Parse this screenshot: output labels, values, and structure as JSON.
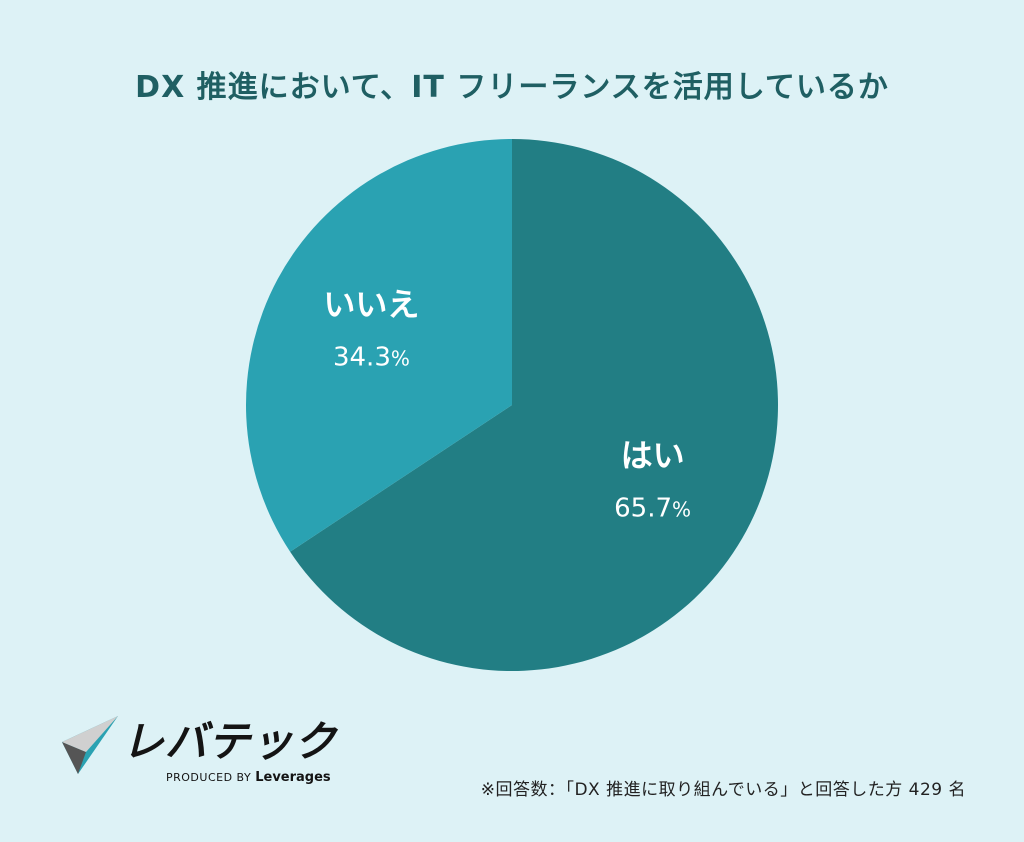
{
  "chart_data": {
    "type": "pie",
    "title": "DX 推進において、IT フリーランスを活用しているか",
    "slices": [
      {
        "label": "はい",
        "value": 65.7,
        "display": "65.7",
        "color": "#227e84"
      },
      {
        "label": "いいえ",
        "value": 34.3,
        "display": "34.3",
        "color": "#2aa2b2"
      }
    ],
    "unit": "%",
    "legend": "none"
  },
  "logo": {
    "name": "レバテック",
    "byline_prefix": "PRODUCED BY",
    "byline_brand": "Leverages"
  },
  "footnote": "※回答数：「DX 推進に取り組んでいる」と回答した方 429 名"
}
